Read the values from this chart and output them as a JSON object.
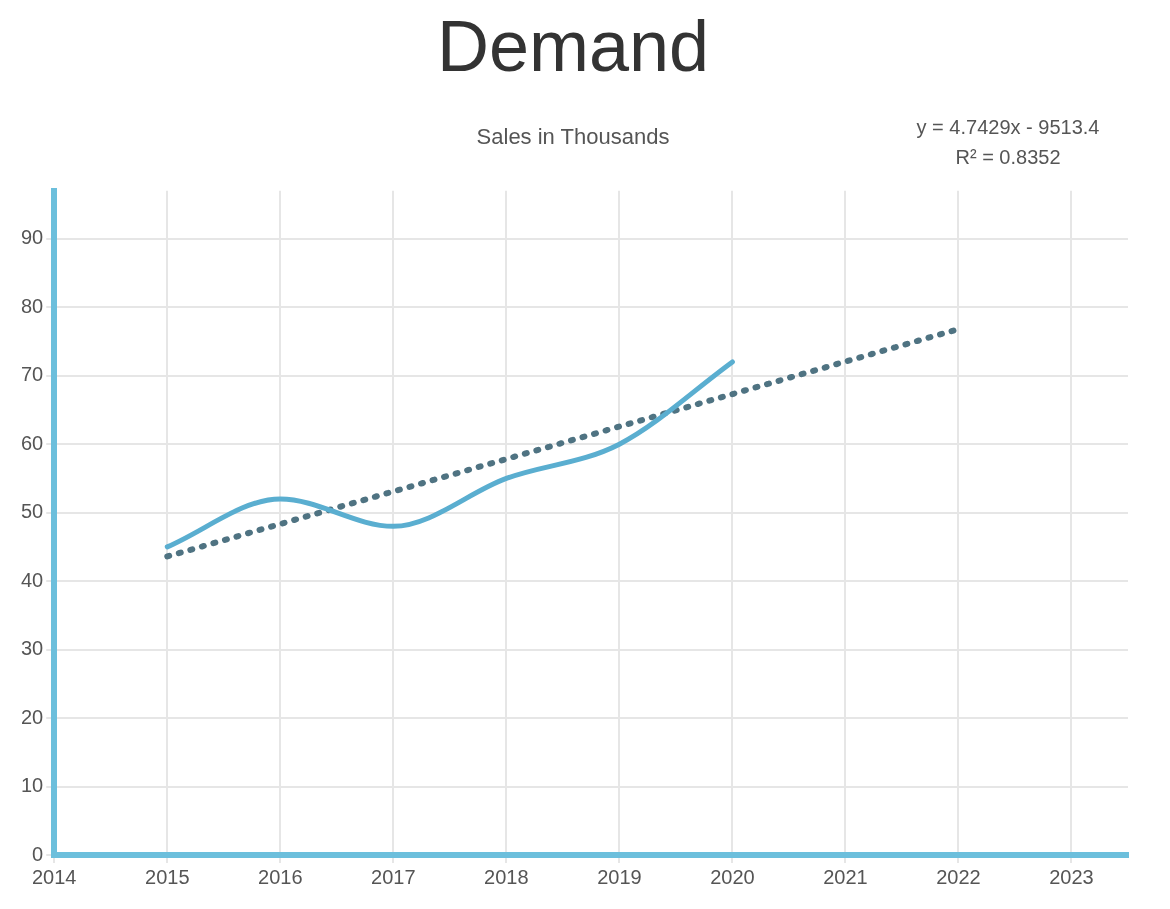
{
  "chart_data": {
    "type": "line",
    "title": "Demand",
    "subtitle": "Sales in Thousands",
    "x": [
      2015,
      2016,
      2017,
      2018,
      2019,
      2020
    ],
    "series": [
      {
        "type": "line",
        "color": "#5aaed0",
        "values": [
          45,
          52,
          48,
          55,
          60,
          72
        ],
        "line_style": "solid"
      },
      {
        "type": "line",
        "color": "#4f7382",
        "x": [
          2015,
          2022
        ],
        "values": [
          43.6,
          76.8
        ],
        "line_style": "dotted"
      }
    ],
    "xlim": [
      2014,
      2023.5
    ],
    "xticks": [
      2014,
      2015,
      2016,
      2017,
      2018,
      2019,
      2020,
      2021,
      2022,
      2023
    ],
    "ylim": [
      0,
      97
    ],
    "yticks": [
      0,
      10,
      20,
      30,
      40,
      50,
      60,
      70,
      80,
      90
    ],
    "grid": true,
    "legend": false,
    "marker": "none",
    "annotations": [
      "y = 4.7429x - 9513.4",
      "R² = 0.8352"
    ]
  }
}
